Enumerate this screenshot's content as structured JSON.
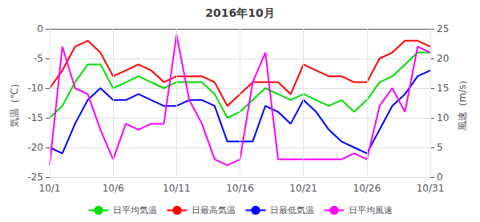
{
  "chart_data": {
    "type": "line",
    "title": "2016年10月",
    "x": [
      1,
      2,
      3,
      4,
      5,
      6,
      7,
      8,
      9,
      10,
      11,
      12,
      13,
      14,
      15,
      16,
      17,
      18,
      19,
      20,
      21,
      22,
      23,
      24,
      25,
      26,
      27,
      28,
      29,
      30,
      31
    ],
    "xlim": [
      1,
      31
    ],
    "xticks": [
      {
        "value": 1,
        "label": "10/1"
      },
      {
        "value": 6,
        "label": "10/6"
      },
      {
        "value": 11,
        "label": "10/11"
      },
      {
        "value": 16,
        "label": "10/16"
      },
      {
        "value": 21,
        "label": "10/21"
      },
      {
        "value": 26,
        "label": "10/26"
      },
      {
        "value": 31,
        "label": "10/31"
      }
    ],
    "ylabel": "気温（℃）",
    "ylim": [
      -25,
      0
    ],
    "yticks": [
      0,
      -5,
      -10,
      -15,
      -20,
      -25
    ],
    "y2label": "風速（m/s）",
    "y2lim": [
      0,
      25
    ],
    "y2ticks": [
      0,
      5,
      10,
      15,
      20,
      25
    ],
    "grid": true,
    "legend": "bottom",
    "series": [
      {
        "name": "日平均気温",
        "color": "#00dd00",
        "values": [
          -15,
          -13,
          -9,
          -6,
          -6,
          -10,
          -9,
          -8,
          -9,
          -10,
          -9,
          -9,
          -9,
          -11,
          -15,
          -14,
          -12,
          -10,
          -11,
          -12,
          -11,
          -12,
          -13,
          -12,
          -14,
          -12,
          -9,
          -8,
          -6,
          -4,
          -4
        ]
      },
      {
        "name": "日最高気温",
        "color": "#ff0000",
        "values": [
          -10,
          -7,
          -3,
          -2,
          -4,
          -8,
          -7,
          -6,
          -7,
          -9,
          -8,
          -8,
          -8,
          -9,
          -13,
          -11,
          -9,
          -9,
          -9,
          -11,
          -6,
          -7,
          -8,
          -8,
          -9,
          -9,
          -5,
          -4,
          -2,
          -2,
          -3
        ]
      },
      {
        "name": "日最低気温",
        "color": "#0000ff",
        "values": [
          -20,
          -21,
          -16,
          -12,
          -10,
          -12,
          -12,
          -11,
          -12,
          -13,
          -13,
          -12,
          -12,
          -13,
          -19,
          -19,
          -19,
          -13,
          -14,
          -16,
          -12,
          -14,
          -17,
          -19,
          -20,
          -21,
          -17,
          -13,
          -11,
          -8,
          -7
        ]
      },
      {
        "name": "日平均風速",
        "color": "#ff00ff",
        "axis": "y2",
        "values": [
          2,
          22,
          15,
          14,
          8,
          3,
          9,
          8,
          9,
          9,
          24,
          13,
          9,
          3,
          2,
          3,
          16,
          21,
          3,
          3,
          3,
          3,
          3,
          3,
          4,
          3,
          12,
          15,
          11,
          22,
          21
        ]
      }
    ]
  }
}
